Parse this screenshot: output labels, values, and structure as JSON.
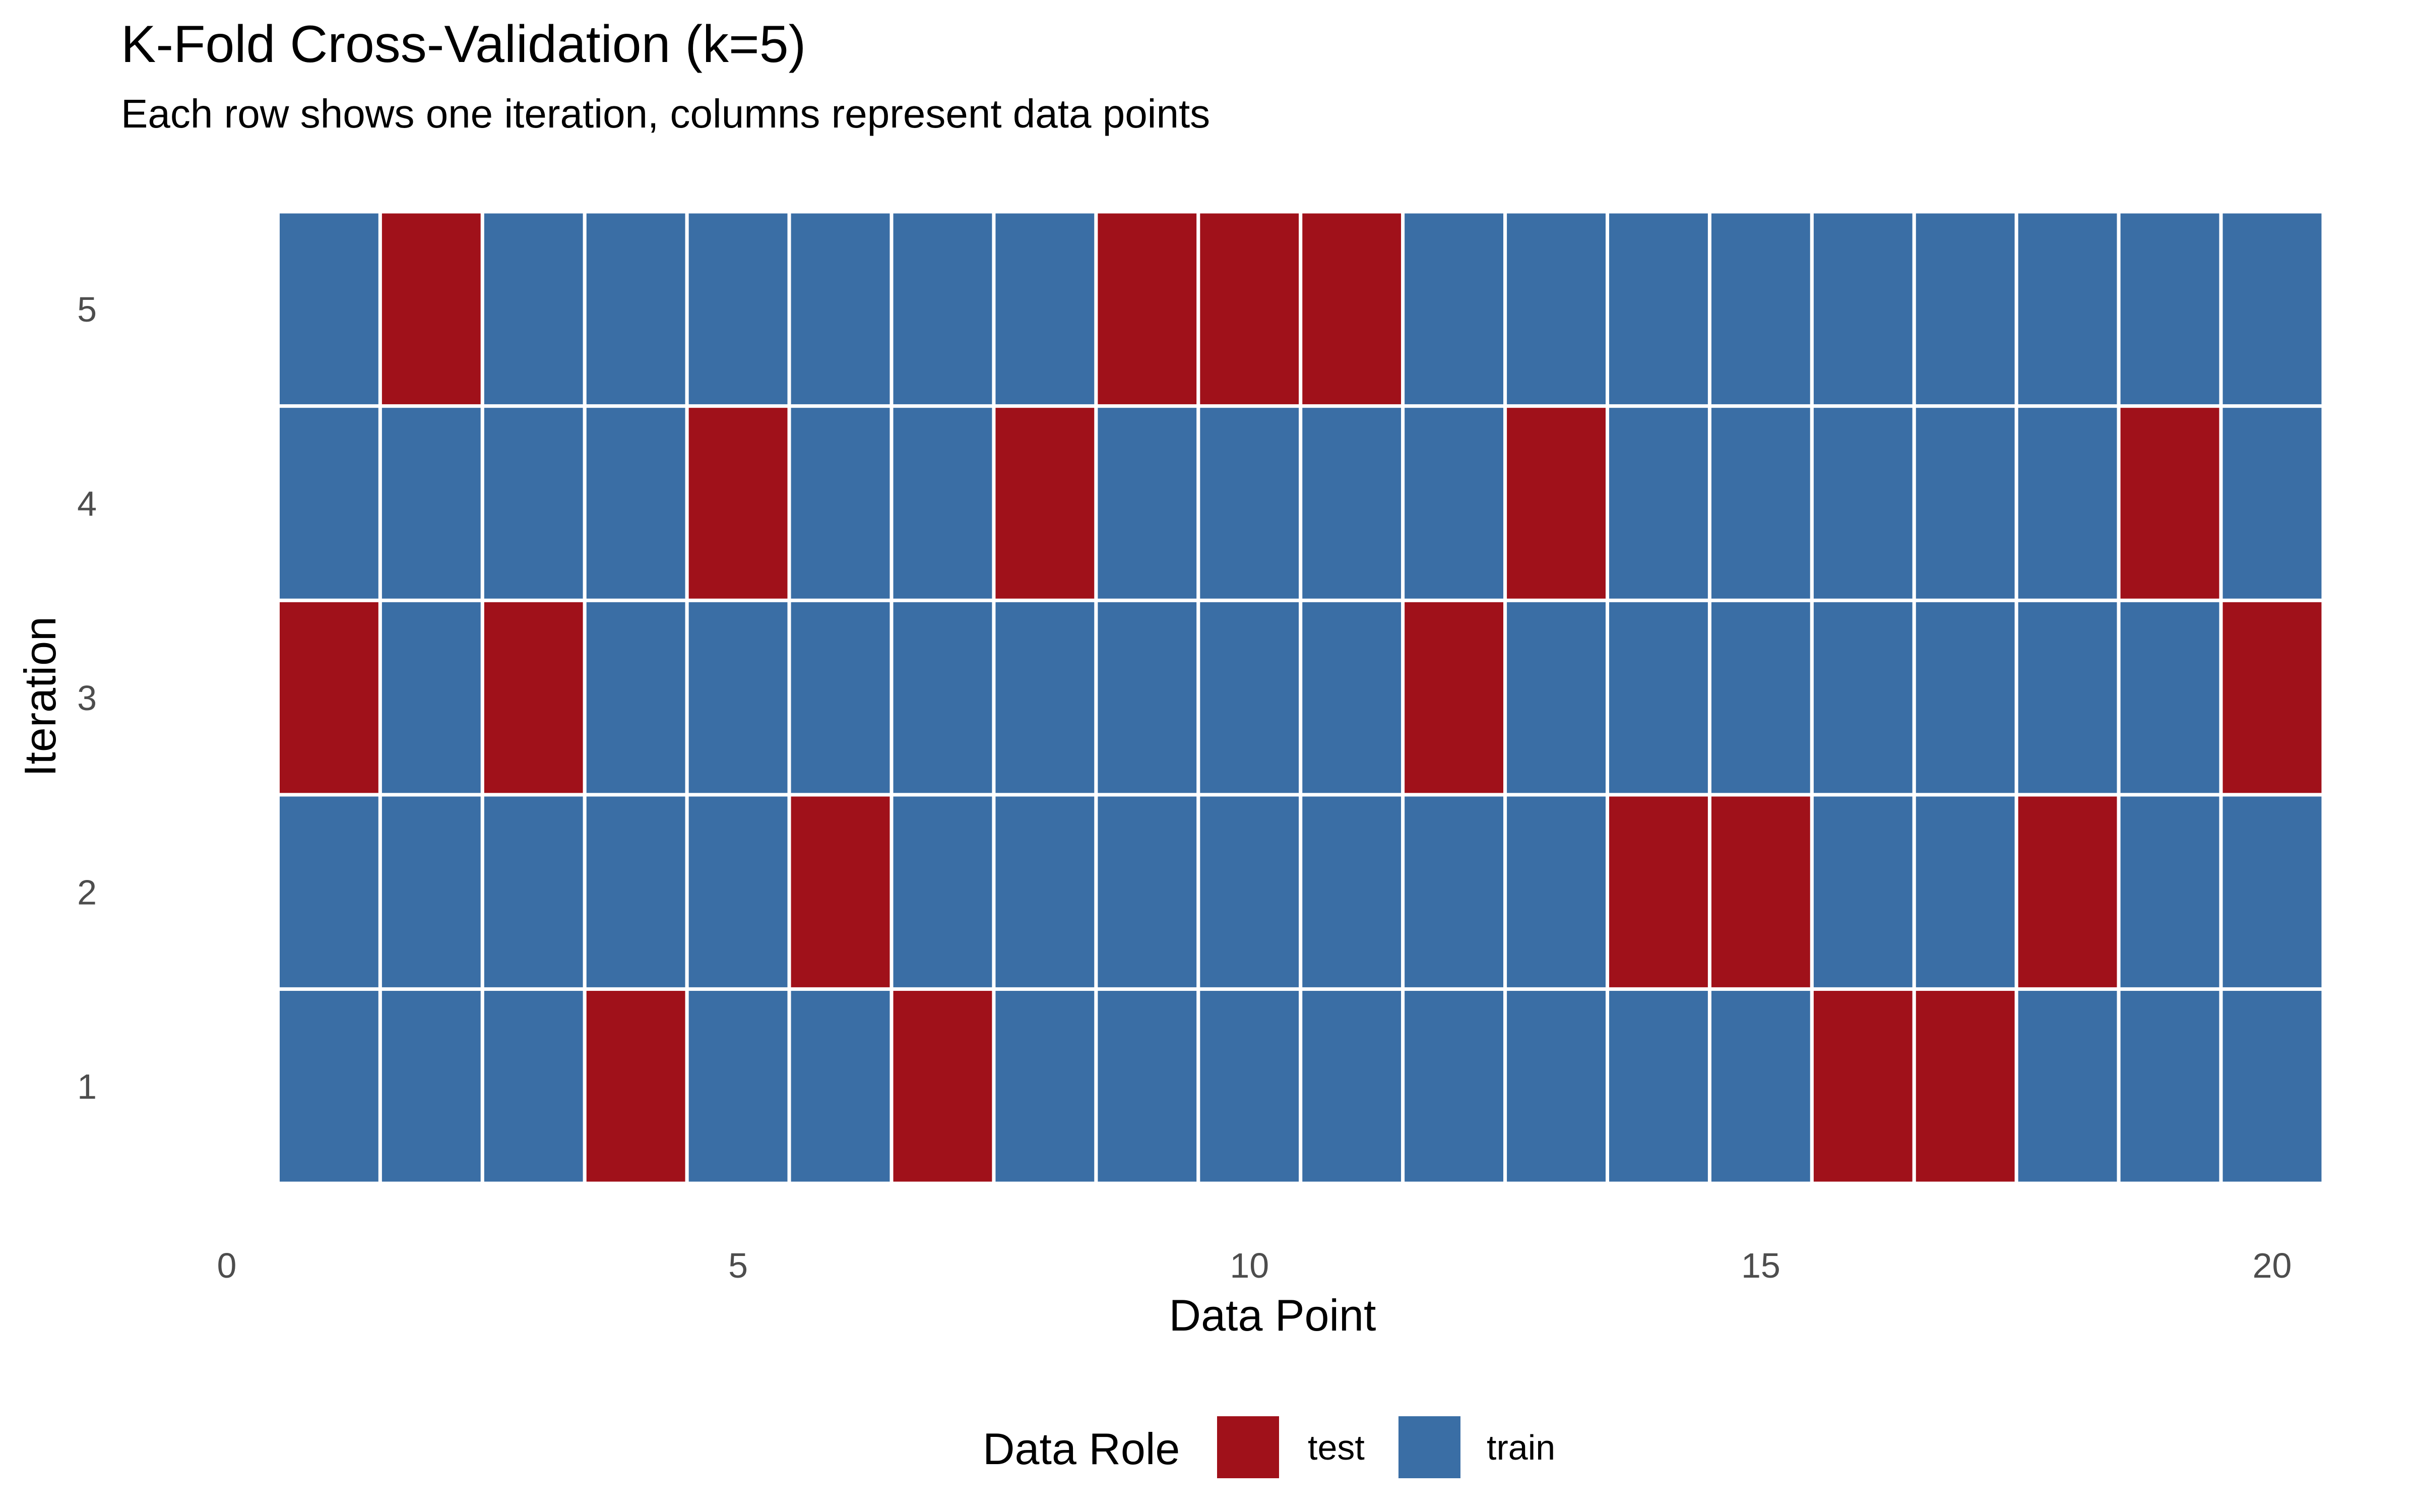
{
  "chart_data": {
    "type": "heatmap",
    "title": "K-Fold Cross-Validation (k=5)",
    "subtitle": "Each row shows one iteration, columns represent data points",
    "xlabel": "Data Point",
    "ylabel": "Iteration",
    "xlim": [
      0,
      20.5
    ],
    "ylim": [
      0.5,
      5.5
    ],
    "x_ticks": [
      "0",
      "5",
      "10",
      "15",
      "20"
    ],
    "y_ticks": [
      "1",
      "2",
      "3",
      "4",
      "5"
    ],
    "grid": false,
    "legend": {
      "title": "Data Role",
      "position": "bottom",
      "entries": [
        {
          "label": "test",
          "color": "#A0111A"
        },
        {
          "label": "train",
          "color": "#3A6EA5"
        }
      ]
    },
    "test_points_by_iteration": [
      {
        "iteration": 1,
        "test": [
          4,
          7,
          16,
          17
        ]
      },
      {
        "iteration": 2,
        "test": [
          6,
          14,
          15,
          18
        ]
      },
      {
        "iteration": 3,
        "test": [
          1,
          3,
          12,
          20
        ]
      },
      {
        "iteration": 4,
        "test": [
          5,
          8,
          13,
          19
        ]
      },
      {
        "iteration": 5,
        "test": [
          2,
          9,
          10,
          11
        ]
      }
    ],
    "n_points": 20
  }
}
